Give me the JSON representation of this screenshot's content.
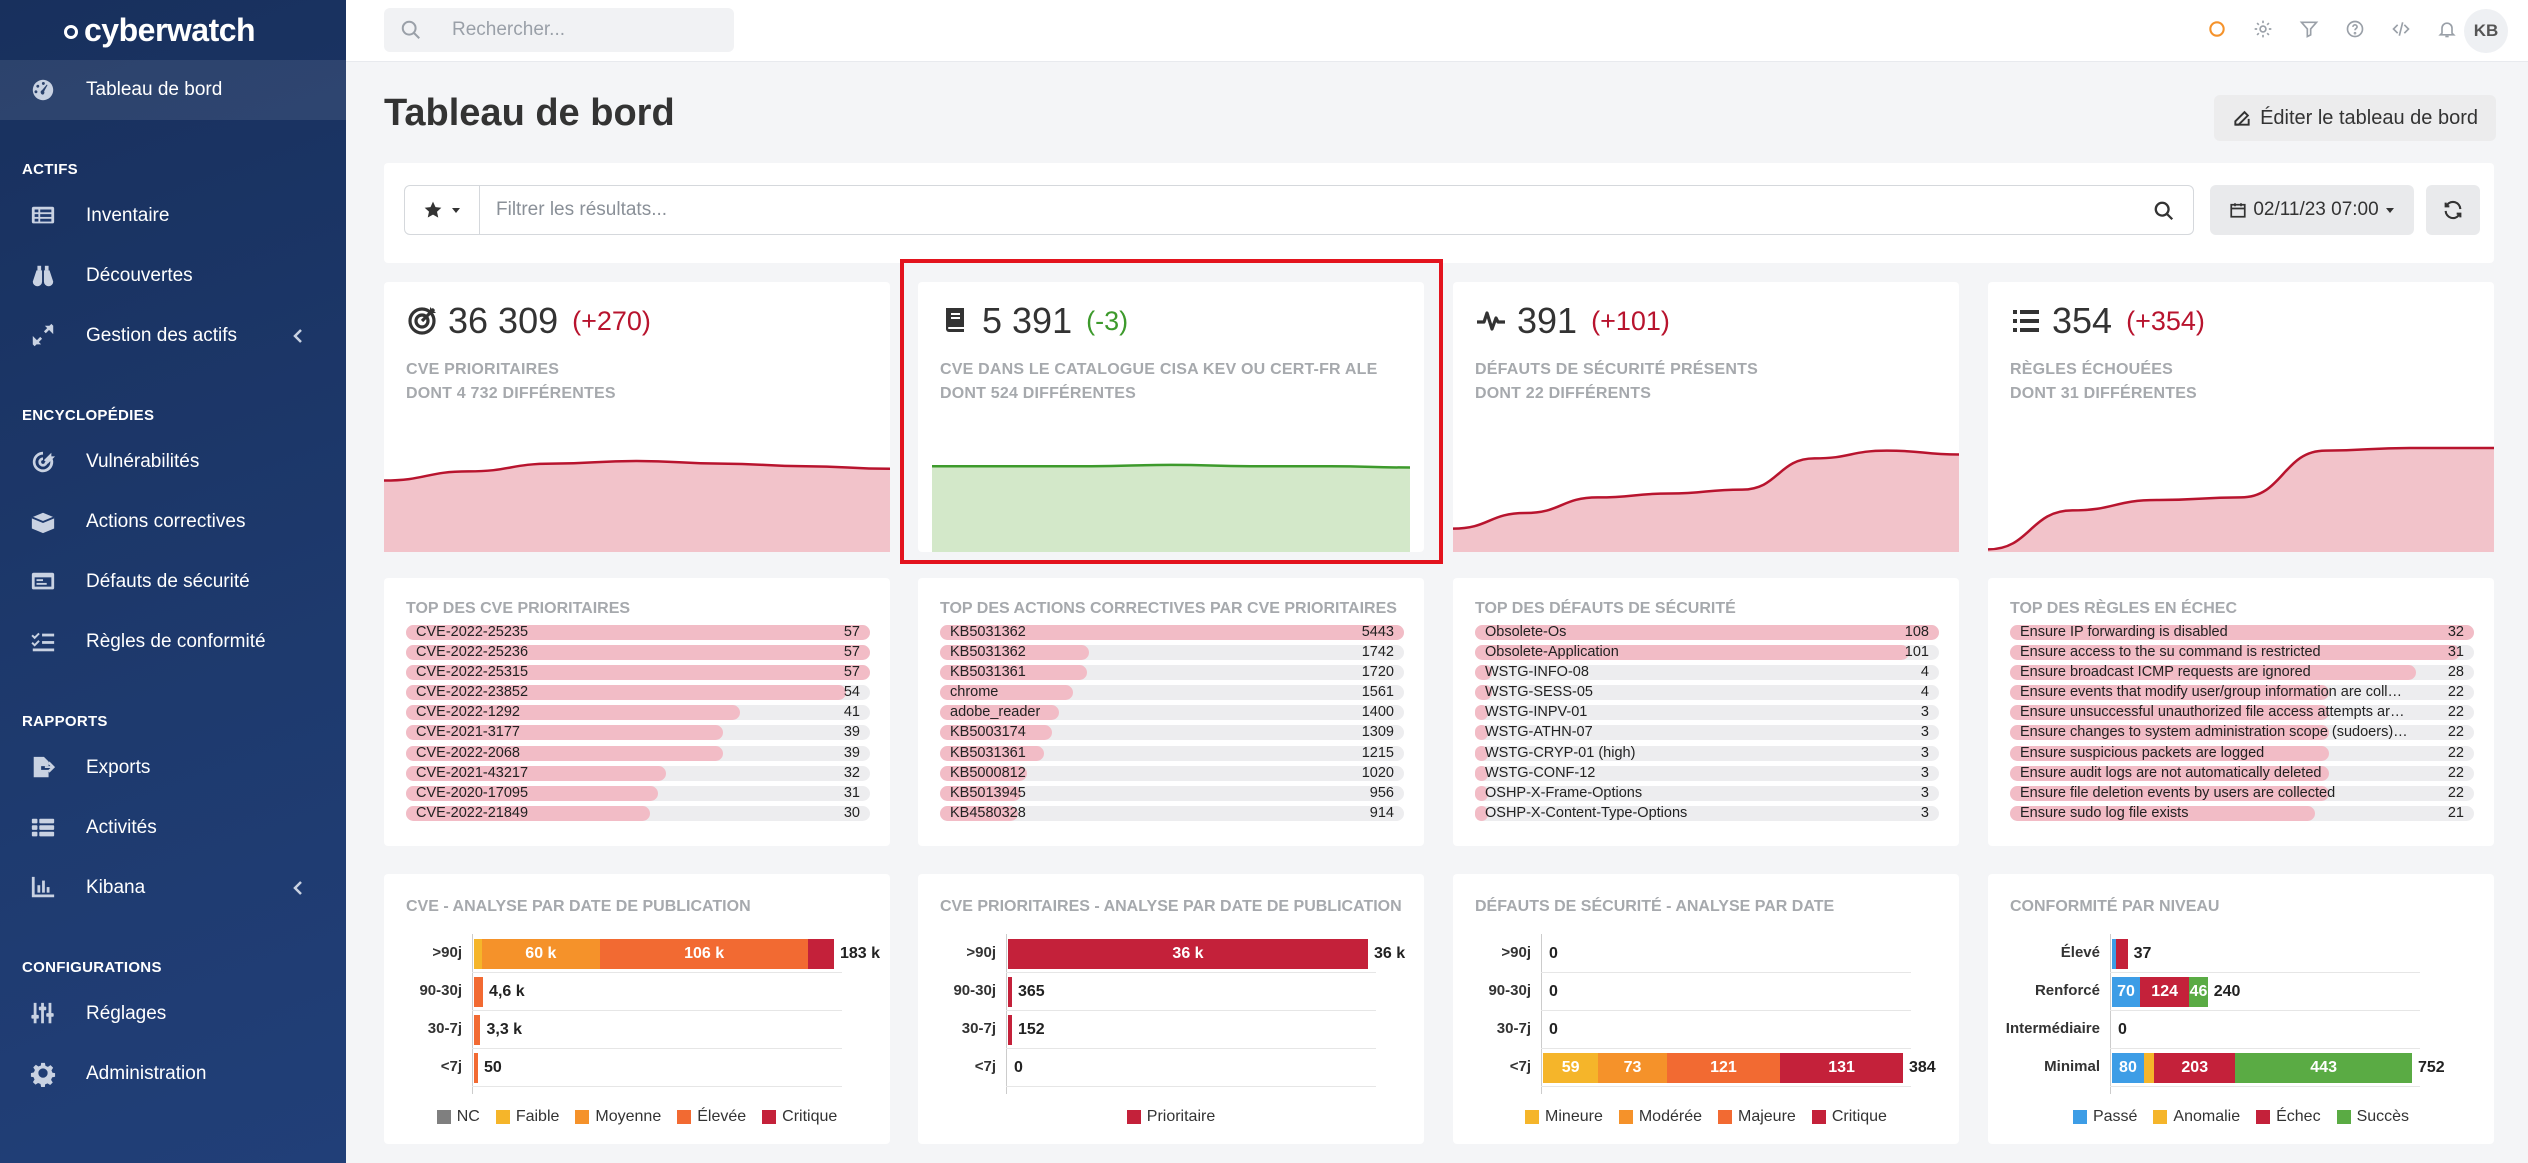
{
  "app": {
    "name": "cyberwatch"
  },
  "sidebar": {
    "top": [
      {
        "label": "Tableau de bord",
        "icon": "dashboard-icon",
        "active": true
      }
    ],
    "sections": [
      {
        "title": "ACTIFS",
        "items": [
          {
            "label": "Inventaire",
            "icon": "list-icon"
          },
          {
            "label": "Découvertes",
            "icon": "binoculars-icon"
          },
          {
            "label": "Gestion des actifs",
            "icon": "expand-arrows-icon",
            "chevron": true
          }
        ]
      },
      {
        "title": "ENCYCLOPÉDIES",
        "items": [
          {
            "label": "Vulnérabilités",
            "icon": "target-icon"
          },
          {
            "label": "Actions correctives",
            "icon": "box-icon"
          },
          {
            "label": "Défauts de sécurité",
            "icon": "window-icon"
          },
          {
            "label": "Règles de conformité",
            "icon": "checklist-icon"
          }
        ]
      },
      {
        "title": "RAPPORTS",
        "items": [
          {
            "label": "Exports",
            "icon": "file-export-icon"
          },
          {
            "label": "Activités",
            "icon": "activity-list-icon"
          },
          {
            "label": "Kibana",
            "icon": "chart-icon",
            "chevron": true
          }
        ]
      },
      {
        "title": "CONFIGURATIONS",
        "items": [
          {
            "label": "Réglages",
            "icon": "sliders-icon"
          },
          {
            "label": "Administration",
            "icon": "gear-icon"
          }
        ]
      }
    ]
  },
  "topbar": {
    "search_placeholder": "Rechercher...",
    "avatar": "KB"
  },
  "page": {
    "title": "Tableau de bord",
    "edit_label": "Éditer le tableau de bord"
  },
  "filter": {
    "placeholder": "Filtrer les résultats...",
    "date": "02/11/23 07:00"
  },
  "stats": [
    {
      "value": "36 309",
      "delta": "(+270)",
      "delta_color": "red",
      "line1": "CVE PRIORITAIRES",
      "line2": "DONT 4 732 DIFFÉRENTES",
      "icon": "bullseye-icon",
      "spark": [
        0.55,
        0.62,
        0.68,
        0.7,
        0.68,
        0.66,
        0.64
      ],
      "color": "red"
    },
    {
      "value": "5 391",
      "delta": "(-3)",
      "delta_color": "green",
      "line1": "CVE DANS LE CATALOGUE CISA KEV OU CERT-FR ALE",
      "line2": "DONT 524 DIFFÉRENTES",
      "icon": "book-icon",
      "spark": [
        0.66,
        0.66,
        0.66,
        0.67,
        0.66,
        0.66,
        0.65
      ],
      "color": "green"
    },
    {
      "value": "391",
      "delta": "(+101)",
      "delta_color": "red",
      "line1": "DÉFAUTS DE SÉCURITÉ PRÉSENTS",
      "line2": "DONT 22 DIFFÉRENTS",
      "icon": "heartbeat-icon",
      "spark": [
        0.18,
        0.3,
        0.42,
        0.45,
        0.48,
        0.72,
        0.78,
        0.75
      ],
      "color": "red"
    },
    {
      "value": "354",
      "delta": "(+354)",
      "delta_color": "red",
      "line1": "RÈGLES ÉCHOUÉES",
      "line2": "DONT 31 DIFFÉRENTES",
      "icon": "list-ul-icon",
      "spark": [
        0.02,
        0.32,
        0.4,
        0.42,
        0.78,
        0.8,
        0.8
      ],
      "color": "red"
    }
  ],
  "top_lists": [
    {
      "title": "TOP DES CVE PRIORITAIRES",
      "max": 57,
      "items": [
        {
          "label": "CVE-2022-25235",
          "value": 57
        },
        {
          "label": "CVE-2022-25236",
          "value": 57
        },
        {
          "label": "CVE-2022-25315",
          "value": 57
        },
        {
          "label": "CVE-2022-23852",
          "value": 54
        },
        {
          "label": "CVE-2022-1292",
          "value": 41
        },
        {
          "label": "CVE-2021-3177",
          "value": 39
        },
        {
          "label": "CVE-2022-2068",
          "value": 39
        },
        {
          "label": "CVE-2021-43217",
          "value": 32
        },
        {
          "label": "CVE-2020-17095",
          "value": 31
        },
        {
          "label": "CVE-2022-21849",
          "value": 30
        }
      ]
    },
    {
      "title": "TOP DES ACTIONS CORRECTIVES PAR CVE PRIORITAIRES",
      "max": 5443,
      "items": [
        {
          "label": "KB5031362",
          "value": 5443
        },
        {
          "label": "KB5031362",
          "value": 1742
        },
        {
          "label": "KB5031361",
          "value": 1720
        },
        {
          "label": "chrome",
          "value": 1561
        },
        {
          "label": "adobe_reader",
          "value": 1400
        },
        {
          "label": "KB5003174",
          "value": 1309
        },
        {
          "label": "KB5031361",
          "value": 1215
        },
        {
          "label": "KB5000812",
          "value": 1020
        },
        {
          "label": "KB5013945",
          "value": 956
        },
        {
          "label": "KB4580328",
          "value": 914
        }
      ]
    },
    {
      "title": "TOP DES DÉFAUTS DE SÉCURITÉ",
      "max": 108,
      "items": [
        {
          "label": "Obsolete-Os",
          "value": 108
        },
        {
          "label": "Obsolete-Application",
          "value": 101
        },
        {
          "label": "WSTG-INFO-08",
          "value": 4
        },
        {
          "label": "WSTG-SESS-05",
          "value": 4
        },
        {
          "label": "WSTG-INPV-01",
          "value": 3
        },
        {
          "label": "WSTG-ATHN-07",
          "value": 3
        },
        {
          "label": "WSTG-CRYP-01 (high)",
          "value": 3
        },
        {
          "label": "WSTG-CONF-12",
          "value": 3
        },
        {
          "label": "OSHP-X-Frame-Options",
          "value": 3
        },
        {
          "label": "OSHP-X-Content-Type-Options",
          "value": 3
        }
      ]
    },
    {
      "title": "TOP DES RÈGLES EN ÉCHEC",
      "max": 32,
      "items": [
        {
          "label": "Ensure IP forwarding is disabled",
          "value": 32
        },
        {
          "label": "Ensure access to the su command is restricted",
          "value": 31
        },
        {
          "label": "Ensure broadcast ICMP requests are ignored",
          "value": 28
        },
        {
          "label": "Ensure events that modify user/group information are collected",
          "value": 22
        },
        {
          "label": "Ensure unsuccessful unauthorized file access attempts are coll...",
          "value": 22
        },
        {
          "label": "Ensure changes to system administration scope (sudoers) is co...",
          "value": 22
        },
        {
          "label": "Ensure suspicious packets are logged",
          "value": 22
        },
        {
          "label": "Ensure audit logs are not automatically deleted",
          "value": 22
        },
        {
          "label": "Ensure file deletion events by users are collected",
          "value": 22
        },
        {
          "label": "Ensure sudo log file exists",
          "value": 21
        }
      ]
    }
  ],
  "chart_data": [
    {
      "type": "bar",
      "orientation": "horizontal",
      "stacked": true,
      "title": "CVE - ANALYSE PAR DATE DE PUBLICATION",
      "categories": [
        ">90j",
        "90-30j",
        "30-7j",
        "<7j"
      ],
      "max": 183000,
      "series": [
        {
          "name": "NC",
          "color": "#7f7f7f",
          "values": [
            0,
            0,
            0,
            0
          ],
          "labels": [
            "",
            "",
            "",
            ""
          ]
        },
        {
          "name": "Faible",
          "color": "#f5b52a",
          "values": [
            4000,
            0,
            0,
            0
          ],
          "labels": [
            "",
            "",
            "",
            ""
          ]
        },
        {
          "name": "Moyenne",
          "color": "#f5922a",
          "values": [
            60000,
            0,
            0,
            0
          ],
          "labels": [
            "60 k",
            "",
            "",
            ""
          ]
        },
        {
          "name": "Élevée",
          "color": "#f26a32",
          "values": [
            106000,
            4600,
            3300,
            50
          ],
          "labels": [
            "106 k",
            "",
            "",
            ""
          ]
        },
        {
          "name": "Critique",
          "color": "#c4213a",
          "values": [
            13000,
            0,
            0,
            0
          ],
          "labels": [
            "",
            "",
            "",
            ""
          ]
        }
      ],
      "totals": [
        "183 k",
        "4,6 k",
        "3,3 k",
        "50"
      ]
    },
    {
      "type": "bar",
      "orientation": "horizontal",
      "stacked": true,
      "title": "CVE PRIORITAIRES - ANALYSE PAR DATE DE PUBLICATION",
      "categories": [
        ">90j",
        "90-30j",
        "30-7j",
        "<7j"
      ],
      "max": 36000,
      "series": [
        {
          "name": "Prioritaire",
          "color": "#c4213a",
          "values": [
            36000,
            365,
            152,
            0
          ],
          "labels": [
            "36 k",
            "",
            "",
            ""
          ]
        }
      ],
      "totals": [
        "36 k",
        "365",
        "152",
        "0"
      ]
    },
    {
      "type": "bar",
      "orientation": "horizontal",
      "stacked": true,
      "title": "DÉFAUTS DE SÉCURITÉ - ANALYSE PAR DATE",
      "categories": [
        ">90j",
        "90-30j",
        "30-7j",
        "<7j"
      ],
      "max": 384,
      "series": [
        {
          "name": "Mineure",
          "color": "#f5b52a",
          "values": [
            0,
            0,
            0,
            59
          ],
          "labels": [
            "",
            "",
            "",
            "59"
          ]
        },
        {
          "name": "Modérée",
          "color": "#f5922a",
          "values": [
            0,
            0,
            0,
            73
          ],
          "labels": [
            "",
            "",
            "",
            "73"
          ]
        },
        {
          "name": "Majeure",
          "color": "#f26a32",
          "values": [
            0,
            0,
            0,
            121
          ],
          "labels": [
            "",
            "",
            "",
            "121"
          ]
        },
        {
          "name": "Critique",
          "color": "#c4213a",
          "values": [
            0,
            0,
            0,
            131
          ],
          "labels": [
            "",
            "",
            "",
            "131"
          ]
        }
      ],
      "totals": [
        "0",
        "0",
        "0",
        "384"
      ]
    },
    {
      "type": "bar",
      "orientation": "horizontal",
      "stacked": true,
      "title": "CONFORMITÉ PAR NIVEAU",
      "categories": [
        "Élevé",
        "Renforcé",
        "Intermédiaire",
        "Minimal"
      ],
      "max": 752,
      "series": [
        {
          "name": "Passé",
          "color": "#3d9de6",
          "values": [
            8,
            70,
            0,
            80
          ],
          "labels": [
            "",
            "70",
            "",
            "80"
          ]
        },
        {
          "name": "Anomalie",
          "color": "#f5b52a",
          "values": [
            0,
            0,
            0,
            26
          ],
          "labels": [
            "",
            "",
            "",
            ""
          ]
        },
        {
          "name": "Échec",
          "color": "#c4213a",
          "values": [
            29,
            124,
            0,
            203
          ],
          "labels": [
            "",
            "124",
            "",
            "203"
          ]
        },
        {
          "name": "Succès",
          "color": "#5aab44",
          "values": [
            0,
            46,
            0,
            443
          ],
          "labels": [
            "",
            "46",
            "",
            "443"
          ]
        }
      ],
      "totals": [
        "37",
        "240",
        "0",
        "752"
      ]
    }
  ]
}
